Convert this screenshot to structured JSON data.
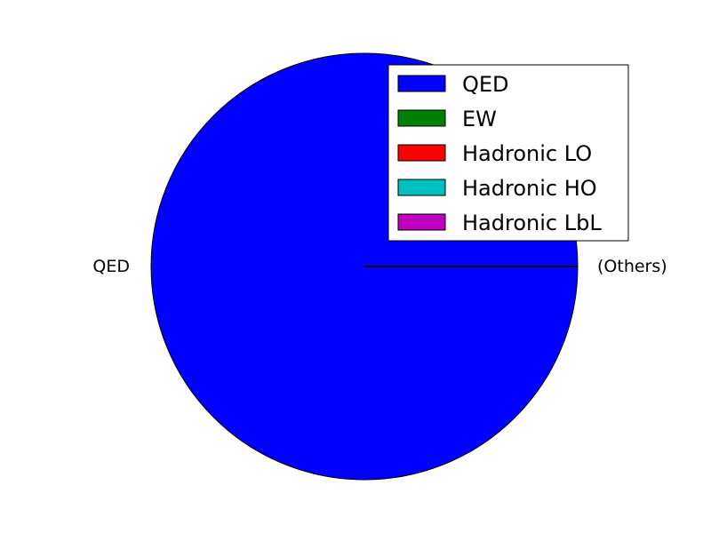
{
  "chart_data": {
    "type": "pie",
    "slices": [
      {
        "label": "QED",
        "value": 99.9999,
        "color": "#0000ff"
      },
      {
        "label": "EW",
        "value": 1e-05,
        "color": "#008000"
      },
      {
        "label": "Hadronic LO",
        "value": 6e-05,
        "color": "#ff0000"
      },
      {
        "label": "Hadronic HO",
        "value": 1e-06,
        "color": "#00bfbf"
      },
      {
        "label": "Hadronic LbL",
        "value": 1e-06,
        "color": "#bf00bf"
      }
    ],
    "slice_labels": [
      "QED",
      "(Others)"
    ],
    "legend": {
      "placement": "top-right",
      "entries": [
        "QED",
        "EW",
        "Hadronic LO",
        "Hadronic HO",
        "Hadronic LbL"
      ]
    },
    "start_angle": 0
  }
}
